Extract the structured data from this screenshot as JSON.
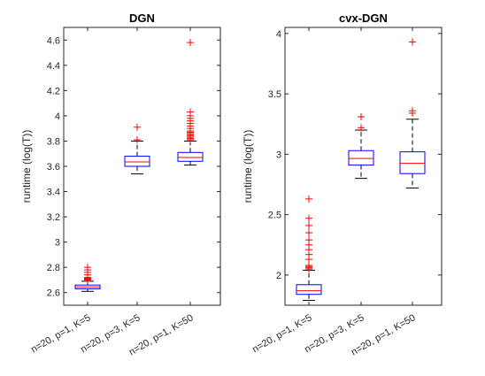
{
  "chart_data": [
    {
      "type": "box",
      "title": "DGN",
      "ylabel": "runtime (log(T))",
      "xlabel": "",
      "ylim": [
        2.5,
        4.7
      ],
      "yticks": [
        "2.6",
        "2.8",
        "3",
        "3.2",
        "3.4",
        "3.6",
        "3.8",
        "4",
        "4.2",
        "4.4",
        "4.6"
      ],
      "categories": [
        "n=20, p=1, K=5",
        "n=20, p=3, K=5",
        "n=20, p=1, K=50"
      ],
      "boxes": [
        {
          "whisker_low": 2.61,
          "q1": 2.63,
          "median": 2.645,
          "q3": 2.66,
          "whisker_high": 2.69,
          "outliers": [
            2.7,
            2.705,
            2.71,
            2.715,
            2.72,
            2.74,
            2.76,
            2.78,
            2.8
          ]
        },
        {
          "whisker_low": 3.54,
          "q1": 3.6,
          "median": 3.635,
          "q3": 3.68,
          "whisker_high": 3.8,
          "outliers": [
            3.81,
            3.91
          ]
        },
        {
          "whisker_low": 3.61,
          "q1": 3.64,
          "median": 3.67,
          "q3": 3.71,
          "whisker_high": 3.8,
          "outliers": [
            3.81,
            3.82,
            3.83,
            3.84,
            3.85,
            3.86,
            3.87,
            3.88,
            3.9,
            3.92,
            3.94,
            3.96,
            3.98,
            4.0,
            4.03,
            4.58
          ]
        }
      ],
      "colors": {
        "box": "#0000ff",
        "median": "#ff0000",
        "whisker": "#000000",
        "outlier": "#ff0000"
      }
    },
    {
      "type": "box",
      "title": "cvx-DGN",
      "ylabel": "runtime (log(T))",
      "xlabel": "",
      "ylim": [
        1.75,
        4.05
      ],
      "yticks": [
        "2",
        "2.5",
        "3",
        "3.5",
        "4"
      ],
      "categories": [
        "n=20, p=1, K=5",
        "n=20, p=3, K=5",
        "n=20, p=1, K=50"
      ],
      "boxes": [
        {
          "whisker_low": 1.79,
          "q1": 1.84,
          "median": 1.87,
          "q3": 1.92,
          "whisker_high": 2.04,
          "outliers": [
            2.05,
            2.06,
            2.07,
            2.08,
            2.13,
            2.17,
            2.21,
            2.25,
            2.29,
            2.35,
            2.41,
            2.47,
            2.63
          ]
        },
        {
          "whisker_low": 2.8,
          "q1": 2.91,
          "median": 2.965,
          "q3": 3.03,
          "whisker_high": 3.2,
          "outliers": [
            3.22,
            3.31
          ]
        },
        {
          "whisker_low": 2.72,
          "q1": 2.84,
          "median": 2.925,
          "q3": 3.02,
          "whisker_high": 3.29,
          "outliers": [
            3.34,
            3.36,
            3.93
          ]
        }
      ],
      "colors": {
        "box": "#0000ff",
        "median": "#ff0000",
        "whisker": "#000000",
        "outlier": "#ff0000"
      }
    }
  ]
}
